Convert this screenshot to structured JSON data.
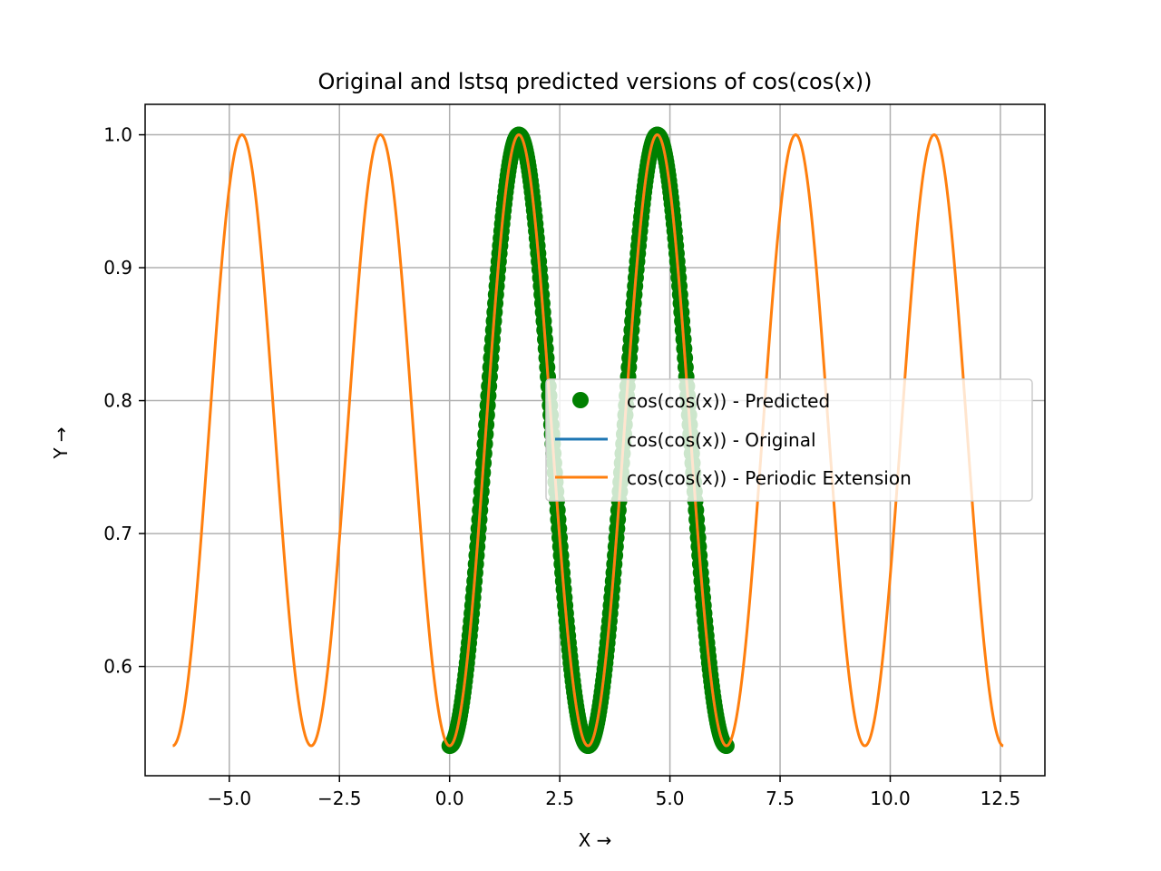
{
  "chart_data": {
    "type": "line",
    "title": "Original and lstsq predicted versions of cos(cos(x))",
    "xlabel": "X →",
    "ylabel": "Y →",
    "xlim": [
      -6.91,
      13.51
    ],
    "ylim": [
      0.5178,
      1.0229
    ],
    "grid": true,
    "legend_position": "center-right",
    "x_ticks": [
      -5.0,
      -2.5,
      0.0,
      2.5,
      5.0,
      7.5,
      10.0,
      12.5
    ],
    "x_tick_labels": [
      "−5.0",
      "−2.5",
      "0.0",
      "2.5",
      "5.0",
      "7.5",
      "10.0",
      "12.5"
    ],
    "y_ticks": [
      0.6,
      0.7,
      0.8,
      0.9,
      1.0
    ],
    "y_tick_labels": [
      "0.6",
      "0.7",
      "0.8",
      "0.9",
      "1.0"
    ],
    "series": [
      {
        "name": "cos(cos(x)) - Predicted",
        "style": "markers",
        "color": "#008000",
        "function": "cos(cos(x))",
        "x_range": [
          0,
          6.2832
        ]
      },
      {
        "name": "cos(cos(x)) - Original",
        "style": "line",
        "color": "#1f77b4",
        "function": "cos(cos(x))",
        "x_range": [
          0,
          6.2832
        ]
      },
      {
        "name": "cos(cos(x)) - Periodic Extension",
        "style": "line",
        "color": "#ff7f0e",
        "function": "cos(cos(x))",
        "x_range": [
          -6.2832,
          12.5664
        ]
      }
    ],
    "sample_points": [
      {
        "x": -4.712,
        "y": 1.0
      },
      {
        "x": -3.1416,
        "y": 0.5403
      },
      {
        "x": -1.5708,
        "y": 1.0
      },
      {
        "x": 0.0,
        "y": 0.5403
      },
      {
        "x": 1.5708,
        "y": 1.0
      },
      {
        "x": 3.1416,
        "y": 0.5403
      },
      {
        "x": 4.712,
        "y": 1.0
      },
      {
        "x": 6.2832,
        "y": 0.5403
      },
      {
        "x": 7.854,
        "y": 1.0
      },
      {
        "x": 9.4248,
        "y": 0.5403
      },
      {
        "x": 10.9956,
        "y": 1.0
      },
      {
        "x": 12.5664,
        "y": 0.5403
      }
    ]
  }
}
